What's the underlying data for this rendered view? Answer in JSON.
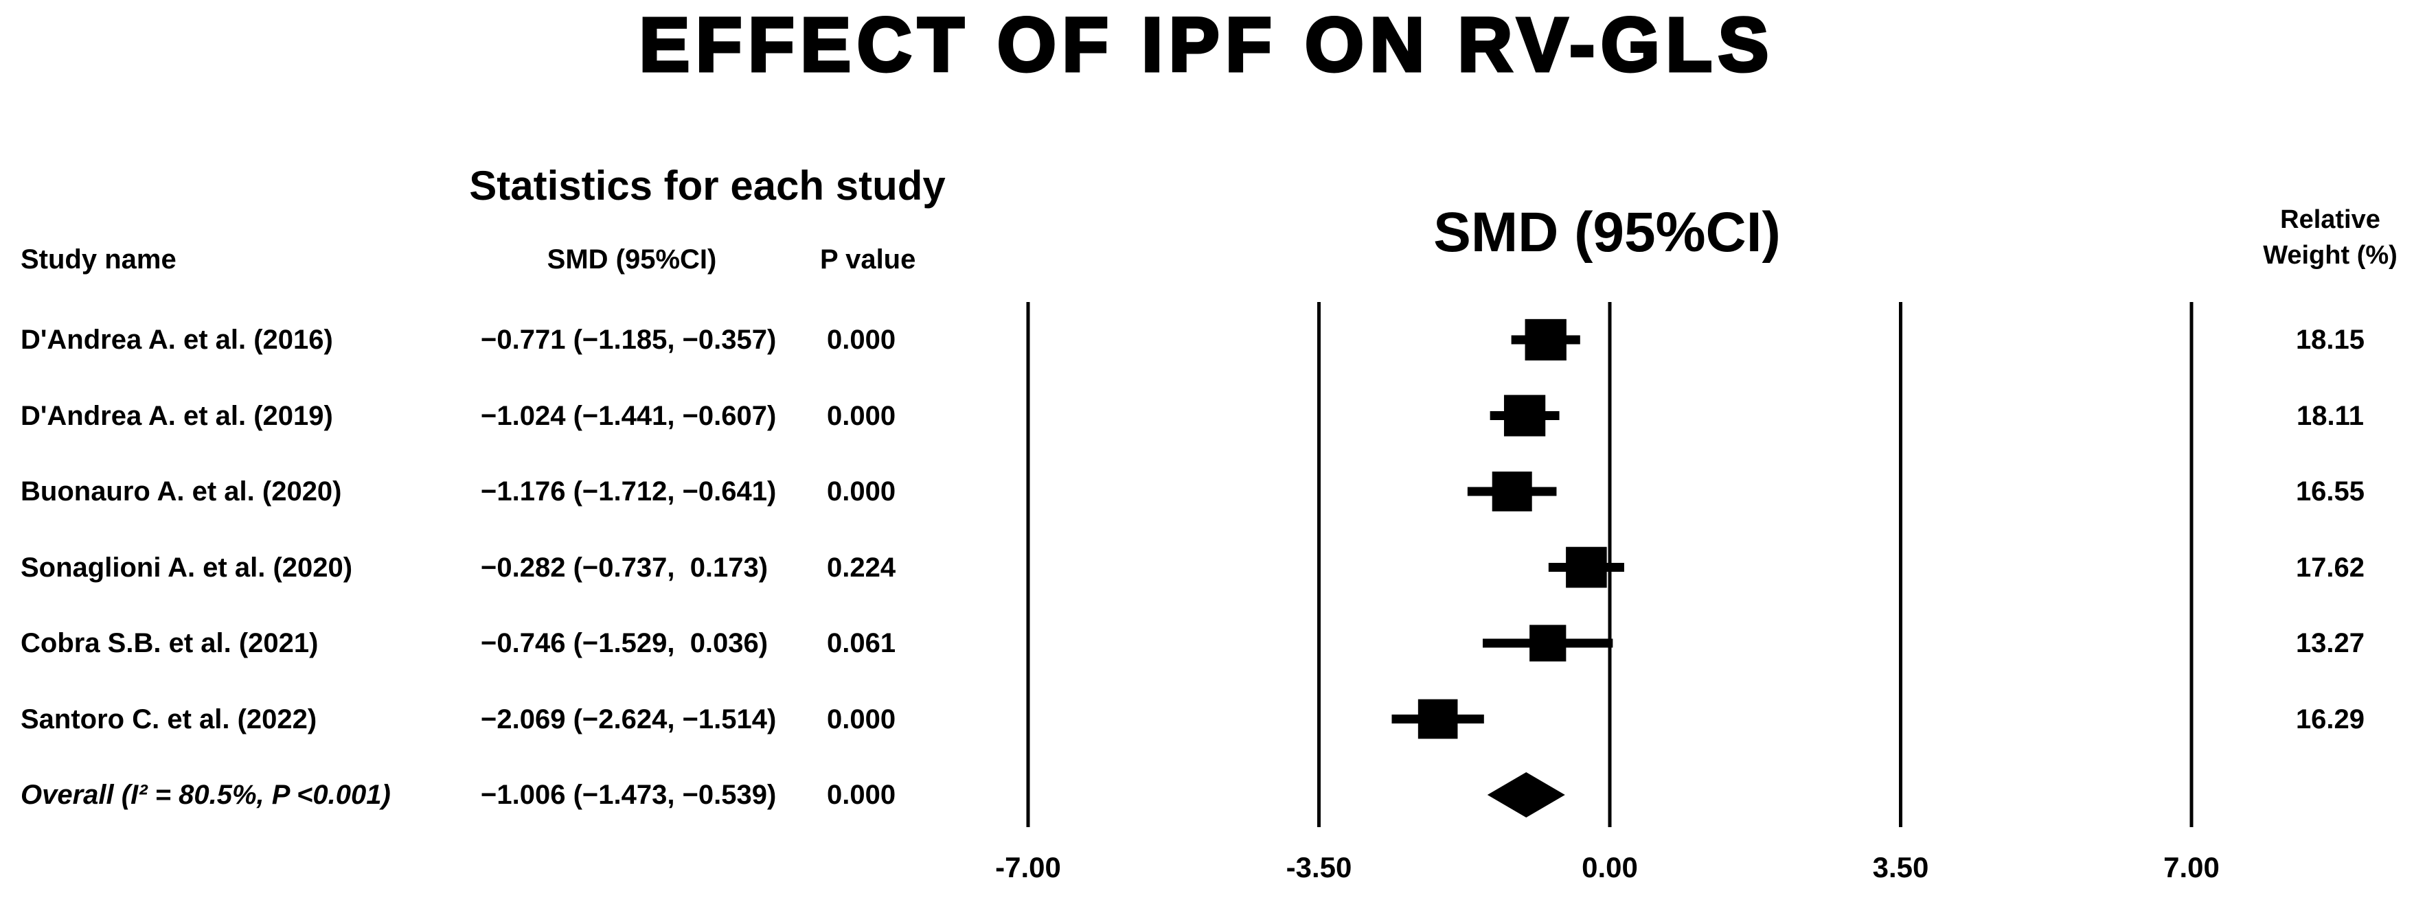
{
  "title": "EFFECT OF IPF ON RV-GLS",
  "table": {
    "group_header": "Statistics for each study",
    "columns": {
      "study": "Study name",
      "smd": "SMD (95%CI)",
      "p": "P value"
    },
    "rows": [
      {
        "study": "D'Andrea A. et al. (2016)",
        "smd": "−0.771 (−1.185, −0.357)",
        "p": "0.000",
        "weight": "18.15"
      },
      {
        "study": "D'Andrea A. et al. (2019)",
        "smd": "−1.024 (−1.441, −0.607)",
        "p": "0.000",
        "weight": "18.11"
      },
      {
        "study": "Buonauro A. et al. (2020)",
        "smd": "−1.176 (−1.712, −0.641)",
        "p": "0.000",
        "weight": "16.55"
      },
      {
        "study": "Sonaglioni A. et al. (2020)",
        "smd": "−0.282 (−0.737,  0.173)",
        "p": "0.224",
        "weight": "17.62"
      },
      {
        "study": "Cobra S.B. et al. (2021)",
        "smd": "−0.746 (−1.529,  0.036)",
        "p": "0.061",
        "weight": "13.27"
      },
      {
        "study": "Santoro C. et al. (2022)",
        "smd": "−2.069 (−2.624, −1.514)",
        "p": "0.000",
        "weight": "16.29"
      },
      {
        "study": "Overall (I² = 80.5%, P <0.001)",
        "smd": "−1.006 (−1.473, −0.539)",
        "p": "0.000",
        "weight": "",
        "is_overall": true
      }
    ]
  },
  "plot": {
    "header": "SMD (95%CI)",
    "weight_header": [
      "Relative",
      "Weight (%)"
    ]
  },
  "chart_data": {
    "type": "forest",
    "title": "EFFECT OF IPF ON RV-GLS",
    "xlabel": "SMD (95%CI)",
    "axis": {
      "min": -7,
      "max": 7,
      "ticks": [
        -7,
        -3.5,
        0,
        3.5,
        7
      ],
      "tick_labels": [
        "-7.00",
        "-3.50",
        "0.00",
        "3.50",
        "7.00"
      ],
      "grid": "vertical-lines"
    },
    "studies": [
      {
        "name": "D'Andrea A. et al. (2016)",
        "smd": -0.771,
        "ci_low": -1.185,
        "ci_high": -0.357,
        "p_value": 0.0,
        "weight": 18.15
      },
      {
        "name": "D'Andrea A. et al. (2019)",
        "smd": -1.024,
        "ci_low": -1.441,
        "ci_high": -0.607,
        "p_value": 0.0,
        "weight": 18.11
      },
      {
        "name": "Buonauro A. et al. (2020)",
        "smd": -1.176,
        "ci_low": -1.712,
        "ci_high": -0.641,
        "p_value": 0.0,
        "weight": 16.55
      },
      {
        "name": "Sonaglioni A. et al. (2020)",
        "smd": -0.282,
        "ci_low": -0.737,
        "ci_high": 0.173,
        "p_value": 0.224,
        "weight": 17.62
      },
      {
        "name": "Cobra S.B. et al. (2021)",
        "smd": -0.746,
        "ci_low": -1.529,
        "ci_high": 0.036,
        "p_value": 0.061,
        "weight": 13.27
      },
      {
        "name": "Santoro C. et al. (2022)",
        "smd": -2.069,
        "ci_low": -2.624,
        "ci_high": -1.514,
        "p_value": 0.0,
        "weight": 16.29
      }
    ],
    "overall": {
      "name": "Overall",
      "i_squared": "80.5%",
      "heterogeneity_p": "<0.001",
      "smd": -1.006,
      "ci_low": -1.473,
      "ci_high": -0.539,
      "p_value": 0.0
    },
    "marker_color": "#000000",
    "legend_position": "none"
  }
}
